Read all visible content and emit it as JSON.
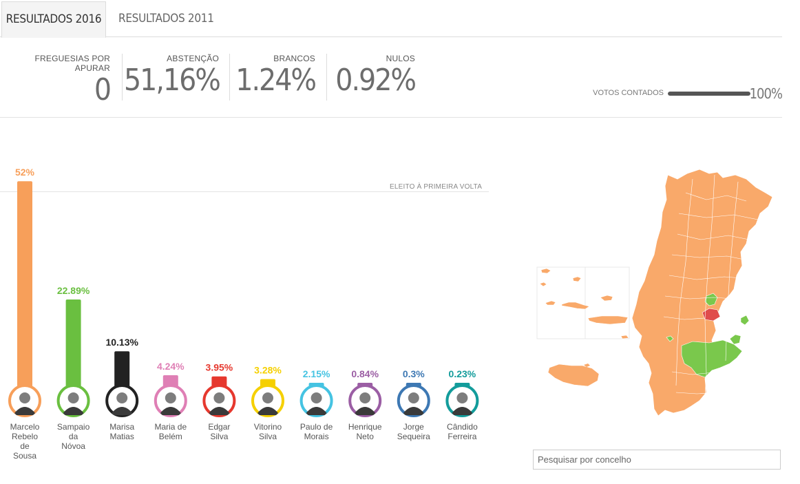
{
  "tabs": [
    {
      "label": "RESULTADOS 2016",
      "active": true
    },
    {
      "label": "RESULTADOS 2011",
      "active": false
    }
  ],
  "stats": {
    "freguesias": {
      "label": "FREGUESIAS POR APURAR",
      "value": "0"
    },
    "abstencao": {
      "label": "ABSTENÇÃO",
      "value": "51,16%"
    },
    "brancos": {
      "label": "BRANCOS",
      "value": "1.24%"
    },
    "nulos": {
      "label": "NULOS",
      "value": "0.92%"
    }
  },
  "progress": {
    "label": "VOTOS CONTADOS",
    "value_label": "100%",
    "fraction": 1.0
  },
  "threshold_label": "ELEITO À PRIMEIRA VOLTA",
  "search": {
    "placeholder": "Pesquisar por concelho"
  },
  "colors": {
    "accent_dark": "#555555",
    "map_orange": "#f9a96a",
    "map_green": "#7ac84c",
    "map_red": "#e04c4c"
  },
  "chart_data": {
    "type": "bar",
    "threshold": 50,
    "series": [
      {
        "label": "52%",
        "value": 52.0,
        "name_lines": [
          "Marcelo",
          "Rebelo",
          "de",
          "Sousa"
        ],
        "color": "#f79f5a",
        "label_color": "#f79f5a"
      },
      {
        "label": "22.89%",
        "value": 22.89,
        "name_lines": [
          "Sampaio",
          "da",
          "Nóvoa"
        ],
        "color": "#6abf40",
        "label_color": "#6abf40"
      },
      {
        "label": "10.13%",
        "value": 10.13,
        "name_lines": [
          "Marisa",
          "Matias"
        ],
        "color": "#222222",
        "label_color": "#222222"
      },
      {
        "label": "4.24%",
        "value": 4.24,
        "name_lines": [
          "Maria de",
          "Belém"
        ],
        "color": "#df7fb5",
        "label_color": "#df7fb5"
      },
      {
        "label": "3.95%",
        "value": 3.95,
        "name_lines": [
          "Edgar",
          "Silva"
        ],
        "color": "#e6382e",
        "label_color": "#e6382e"
      },
      {
        "label": "3.28%",
        "value": 3.28,
        "name_lines": [
          "Vitorino",
          "Silva"
        ],
        "color": "#f5d000",
        "label_color": "#f5d000"
      },
      {
        "label": "2.15%",
        "value": 2.15,
        "name_lines": [
          "Paulo de",
          "Morais"
        ],
        "color": "#45c3e2",
        "label_color": "#45c3e2"
      },
      {
        "label": "0.84%",
        "value": 0.84,
        "name_lines": [
          "Henrique",
          "Neto"
        ],
        "color": "#9b5ea4",
        "label_color": "#9b5ea4"
      },
      {
        "label": "0.3%",
        "value": 0.3,
        "name_lines": [
          "Jorge",
          "Sequeira"
        ],
        "color": "#3d78b3",
        "label_color": "#3d78b3"
      },
      {
        "label": "0.23%",
        "value": 0.23,
        "name_lines": [
          "Cândido",
          "Ferreira"
        ],
        "color": "#139c9b",
        "label_color": "#139c9b"
      }
    ]
  }
}
